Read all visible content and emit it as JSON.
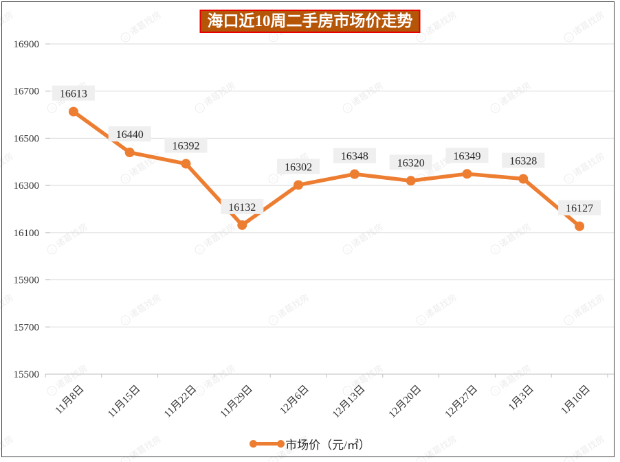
{
  "title": "海口近10周二手房市场价走势",
  "watermark": {
    "logo_glyph": "⌂",
    "text": "诸葛找房"
  },
  "legend": {
    "label": "市场价（元/㎡）"
  },
  "colors": {
    "line": "#ED7D31",
    "marker": "#ED7D31",
    "title_bg": "#B45508",
    "title_border": "#E60000",
    "point_label_bg": "#EFEFEF",
    "point_label_text": "#262626",
    "grid": "#DADADA",
    "axis": "#BFBFBF",
    "tick_text": "#333333",
    "frame": "#3D3D3D",
    "watermark": "#8F8F8F"
  },
  "chart_data": {
    "type": "line",
    "title": "海口近10周二手房市场价走势",
    "categories": [
      "11月8日",
      "11月15日",
      "11月22日",
      "11月29日",
      "12月6日",
      "12月13日",
      "12月20日",
      "12月27日",
      "1月3日",
      "1月10日"
    ],
    "series": [
      {
        "name": "市场价（元/㎡）",
        "values": [
          16613,
          16440,
          16392,
          16132,
          16302,
          16348,
          16320,
          16349,
          16328,
          16127
        ]
      }
    ],
    "xlabel": "",
    "ylabel": "",
    "ylim": [
      15500,
      16900
    ],
    "yticks": [
      15500,
      15700,
      15900,
      16100,
      16300,
      16500,
      16700,
      16900
    ],
    "grid": true,
    "legend_position": "bottom",
    "point_labels_visible": true
  }
}
